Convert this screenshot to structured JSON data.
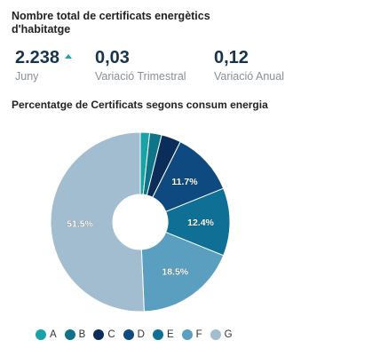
{
  "header": {
    "title": "Nombre total de certificats energètics d'habitatge"
  },
  "kpis": [
    {
      "value": "2.238",
      "label": "Juny",
      "trend": "up"
    },
    {
      "value": "0,03",
      "label": "Variació Trimestral"
    },
    {
      "value": "0,12",
      "label": "Variació Anual"
    }
  ],
  "chart_data": {
    "type": "pie",
    "title": "Percentatge de Certificats segons consum energia",
    "donut": true,
    "categories": [
      "A",
      "B",
      "C",
      "D",
      "E",
      "F",
      "G"
    ],
    "values": [
      1.7,
      2.2,
      3.6,
      11.7,
      12.4,
      18.5,
      51.5
    ],
    "data_labels": [
      "",
      "",
      "",
      "11.7%",
      "12.4%",
      "18.5%",
      "51.5%"
    ],
    "colors": [
      "#1aa3a6",
      "#0e7487",
      "#0b2d59",
      "#0e4a80",
      "#0f6f95",
      "#5b9fc0",
      "#a3bdd0"
    ],
    "legend_position": "bottom-left"
  }
}
